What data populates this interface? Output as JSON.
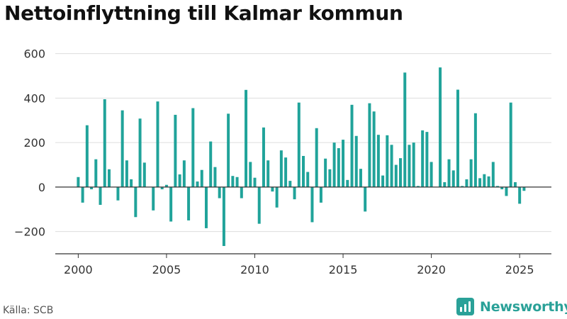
{
  "title": "Nettoinflyttning till Kalmar kommun",
  "source": "Källa: SCB",
  "brand": "Newsworthy",
  "colors": {
    "bar": "#20a39a",
    "brand": "#2aa198",
    "grid": "#dddddd",
    "axis": "#333333",
    "tick_text": "#333333"
  },
  "chart_data": {
    "type": "bar",
    "title": "Nettoinflyttning till Kalmar kommun",
    "xlabel": "",
    "ylabel": "",
    "grid": true,
    "ylim": [
      -300,
      650
    ],
    "xlim": [
      1998.7,
      2026.8
    ],
    "xticks": [
      2000,
      2005,
      2010,
      2015,
      2020,
      2025
    ],
    "yticks": [
      -200,
      0,
      200,
      400,
      600
    ],
    "ytick_labels": [
      "−200",
      "0",
      "200",
      "400",
      "600"
    ],
    "xtick_labels": [
      "2000",
      "2005",
      "2010",
      "2015",
      "2020",
      "2025"
    ],
    "period_start": 2000,
    "periods_per_year": 4,
    "values": [
      45,
      -70,
      278,
      -10,
      125,
      -80,
      395,
      80,
      0,
      -60,
      345,
      120,
      35,
      -135,
      308,
      110,
      0,
      -105,
      385,
      -10,
      10,
      -155,
      325,
      57,
      120,
      -150,
      355,
      25,
      77,
      -185,
      205,
      90,
      -50,
      -265,
      330,
      50,
      45,
      -50,
      437,
      113,
      42,
      -165,
      268,
      120,
      -20,
      -92,
      165,
      133,
      28,
      -55,
      380,
      140,
      68,
      -158,
      265,
      -70,
      128,
      80,
      200,
      175,
      213,
      32,
      370,
      230,
      82,
      -110,
      377,
      340,
      235,
      52,
      233,
      190,
      100,
      130,
      515,
      190,
      200,
      5,
      255,
      248,
      113,
      0,
      538,
      22,
      125,
      75,
      438,
      5,
      35,
      125,
      332,
      40,
      58,
      48,
      113,
      5,
      -10,
      -40,
      380,
      22,
      -75,
      -17
    ]
  }
}
